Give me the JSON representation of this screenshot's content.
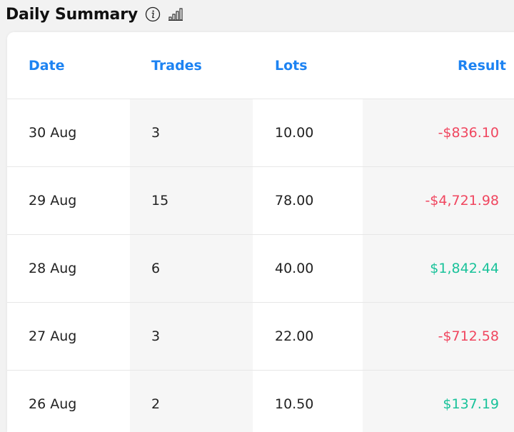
{
  "panel": {
    "title": "Daily Summary",
    "info_icon": "info-circle-icon",
    "chart_icon": "bar-chart-icon"
  },
  "table": {
    "headers": {
      "date": "Date",
      "trades": "Trades",
      "lots": "Lots",
      "result": "Result"
    },
    "rows": [
      {
        "date": "30 Aug",
        "trades": "3",
        "lots": "10.00",
        "result": "-$836.10",
        "sign": "neg"
      },
      {
        "date": "29 Aug",
        "trades": "15",
        "lots": "78.00",
        "result": "-$4,721.98",
        "sign": "neg"
      },
      {
        "date": "28 Aug",
        "trades": "6",
        "lots": "40.00",
        "result": "$1,842.44",
        "sign": "pos"
      },
      {
        "date": "27 Aug",
        "trades": "3",
        "lots": "22.00",
        "result": "-$712.58",
        "sign": "neg"
      },
      {
        "date": "26 Aug",
        "trades": "2",
        "lots": "10.50",
        "result": "$137.19",
        "sign": "pos"
      }
    ]
  },
  "colors": {
    "header_text": "#1d83f2",
    "negative": "#f0465f",
    "positive": "#19c29a"
  }
}
